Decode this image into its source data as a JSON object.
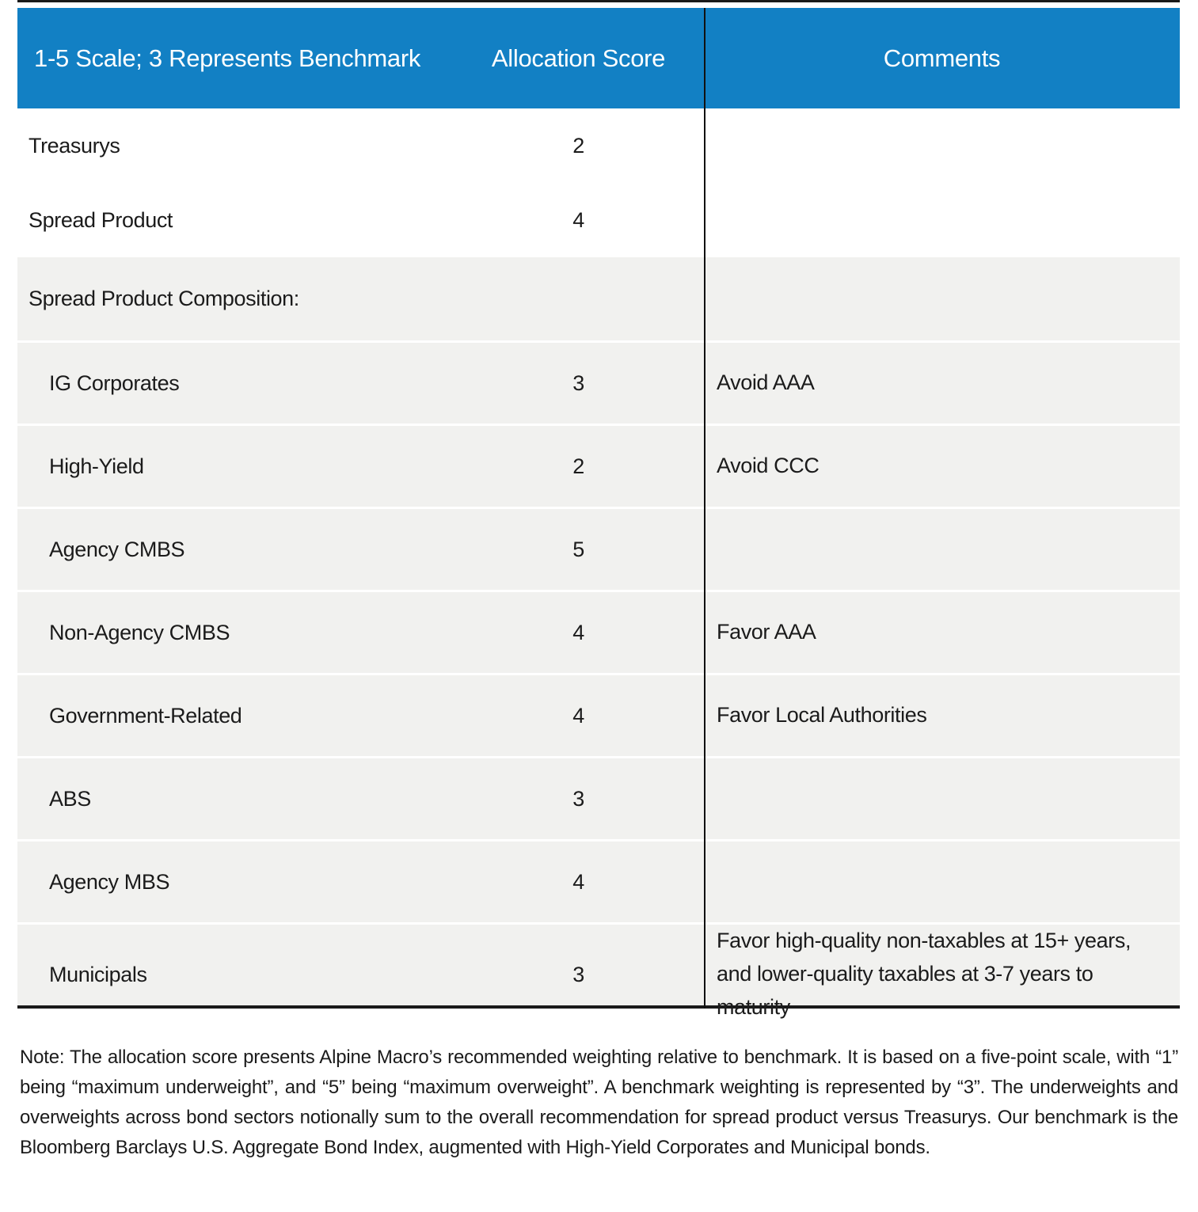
{
  "colors": {
    "header_bg": "#1280c4",
    "header_text": "#ffffff",
    "row_gray": "#f1f1ef",
    "text": "#1b1b1b",
    "rule": "#1a1a1a"
  },
  "table": {
    "header": {
      "scale_label": "1-5 Scale; 3 Represents Benchmark",
      "score_label": "Allocation Score",
      "comments_label": "Comments"
    },
    "rows": [
      {
        "label": "Treasurys",
        "score": "2",
        "comment": "",
        "indent": false,
        "section": "white"
      },
      {
        "label": "Spread Product",
        "score": "4",
        "comment": "",
        "indent": false,
        "section": "white"
      },
      {
        "label": "Spread Product Composition:",
        "score": "",
        "comment": "",
        "indent": false,
        "section": "gray"
      },
      {
        "label": "IG Corporates",
        "score": "3",
        "comment": "Avoid AAA",
        "indent": true,
        "section": "gray"
      },
      {
        "label": "High-Yield",
        "score": "2",
        "comment": "Avoid CCC",
        "indent": true,
        "section": "gray"
      },
      {
        "label": "Agency CMBS",
        "score": "5",
        "comment": "",
        "indent": true,
        "section": "gray"
      },
      {
        "label": "Non-Agency CMBS",
        "score": "4",
        "comment": "Favor AAA",
        "indent": true,
        "section": "gray"
      },
      {
        "label": "Government-Related",
        "score": "4",
        "comment": "Favor Local Authorities",
        "indent": true,
        "section": "gray"
      },
      {
        "label": "ABS",
        "score": "3",
        "comment": "",
        "indent": true,
        "section": "gray"
      },
      {
        "label": "Agency MBS",
        "score": "4",
        "comment": "",
        "indent": true,
        "section": "gray"
      },
      {
        "label": "Municipals",
        "score": "3",
        "comment": "Favor high-quality non-taxables at 15+ years, and lower-quality taxables at 3-7 years to maturity",
        "indent": true,
        "section": "gray"
      }
    ]
  },
  "note": {
    "text": "Note: The allocation score presents Alpine Macro’s recommended weighting relative to benchmark. It is based on a five-point scale, with “1” being “maximum underweight”, and “5” being “maximum overweight”. A benchmark weighting is represented by “3”. The underweights and overweights across bond sectors notionally sum to the overall recommendation for spread product versus Treasurys. Our benchmark is the Bloomberg Barclays U.S. Aggregate Bond Index, augmented with High-Yield Corporates and Municipal bonds."
  }
}
